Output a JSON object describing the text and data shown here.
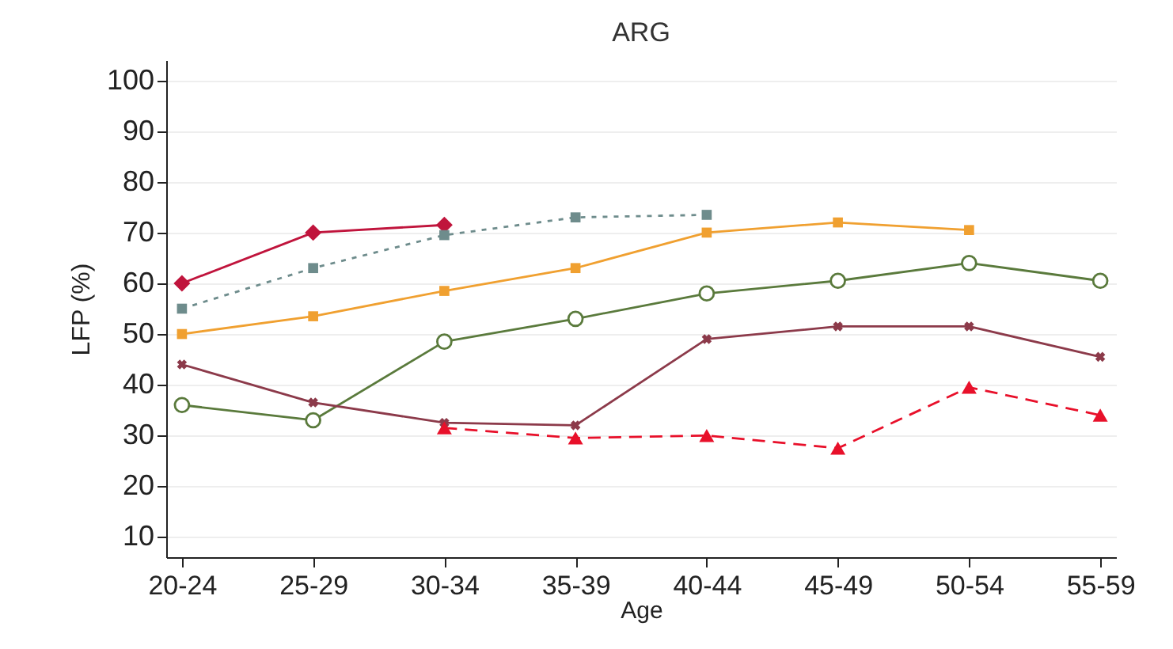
{
  "chart_data": {
    "type": "line",
    "title": "ARG",
    "xlabel": "Age",
    "ylabel": "LFP (%)",
    "categories": [
      "20-24",
      "25-29",
      "30-34",
      "35-39",
      "40-44",
      "45-49",
      "50-54",
      "55-59"
    ],
    "ylim": [
      6,
      104
    ],
    "yticks": [
      10,
      20,
      30,
      40,
      50,
      60,
      70,
      80,
      90,
      100
    ],
    "grid": "y",
    "series": [
      {
        "color": "#c0143c",
        "marker": "diamond",
        "line_style": "solid",
        "values": [
          60,
          70,
          71.5,
          null,
          null,
          null,
          null,
          null
        ]
      },
      {
        "color": "#6e8c8c",
        "marker": "square",
        "line_style": "dotted",
        "values": [
          55,
          63,
          69.5,
          73,
          73.5,
          null,
          null,
          null
        ]
      },
      {
        "color": "#f0a030",
        "marker": "square",
        "line_style": "solid",
        "values": [
          50,
          53.5,
          58.5,
          63,
          70,
          72,
          70.5,
          null
        ]
      },
      {
        "color": "#5a7a3c",
        "marker": "circle",
        "line_style": "solid",
        "values": [
          36,
          33,
          48.5,
          53,
          58,
          60.5,
          64,
          60.5
        ]
      },
      {
        "color": "#8c3a4a",
        "marker": "cross",
        "line_style": "solid",
        "values": [
          44,
          36.5,
          32.5,
          32,
          49,
          51.5,
          51.5,
          45.5
        ]
      },
      {
        "color": "#e8102a",
        "marker": "triangle",
        "line_style": "dashed",
        "values": [
          null,
          null,
          31.5,
          29.5,
          30,
          27.5,
          39.5,
          34
        ]
      }
    ]
  }
}
